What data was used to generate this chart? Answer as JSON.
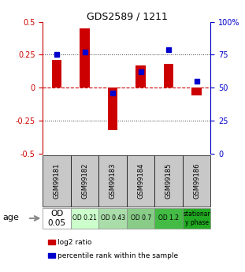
{
  "title": "GDS2589 / 1211",
  "samples": [
    "GSM99181",
    "GSM99182",
    "GSM99183",
    "GSM99184",
    "GSM99185",
    "GSM99186"
  ],
  "log2_ratio": [
    0.21,
    0.45,
    -0.32,
    0.17,
    0.18,
    -0.06
  ],
  "percentile_rank_pct": [
    75,
    77,
    46,
    62,
    79,
    55
  ],
  "ylim": [
    -0.5,
    0.5
  ],
  "yticks_left": [
    -0.5,
    -0.25,
    0,
    0.25,
    0.5
  ],
  "yticks_right": [
    0,
    25,
    50,
    75,
    100
  ],
  "bar_color": "#cc0000",
  "dot_color": "#0000cc",
  "zero_line_color": "#cc0000",
  "age_labels": [
    "OD\n0.05",
    "OD 0.21",
    "OD 0.43",
    "OD 0.7",
    "OD 1.2",
    "stationar\ny phase"
  ],
  "age_bg_colors": [
    "#ffffff",
    "#ccffcc",
    "#aaddaa",
    "#88cc88",
    "#44bb44",
    "#22aa22"
  ],
  "age_row_label": "age",
  "legend_log2": "log2 ratio",
  "legend_pct": "percentile rank within the sample",
  "bar_width": 0.35,
  "sample_bg_color": "#c8c8c8",
  "title_fontsize": 9,
  "tick_fontsize": 7,
  "label_fontsize": 7
}
